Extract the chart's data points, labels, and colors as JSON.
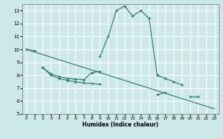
{
  "xlabel": "Humidex (Indice chaleur)",
  "background_color": "#cce8e8",
  "grid_color": "#ffffff",
  "line_color": "#2e7d6e",
  "xlim": [
    -0.5,
    23.5
  ],
  "ylim": [
    5,
    13.5
  ],
  "xticks": [
    0,
    1,
    2,
    3,
    4,
    5,
    6,
    7,
    8,
    9,
    10,
    11,
    12,
    13,
    14,
    15,
    16,
    17,
    18,
    19,
    20,
    21,
    22,
    23
  ],
  "yticks": [
    5,
    6,
    7,
    8,
    9,
    10,
    11,
    12,
    13
  ],
  "lines": [
    {
      "segments": [
        {
          "x": [
            0,
            1
          ],
          "y": [
            10.0,
            9.9
          ]
        },
        {
          "x": [
            9,
            10,
            11,
            12,
            13,
            14,
            15,
            16
          ],
          "y": [
            9.45,
            11.0,
            13.0,
            13.35,
            12.6,
            13.0,
            12.4,
            8.0
          ]
        }
      ]
    },
    {
      "segments": [
        {
          "x": [
            2,
            3,
            4,
            5,
            6,
            7,
            8,
            9
          ],
          "y": [
            8.6,
            8.1,
            7.9,
            7.75,
            7.7,
            7.65,
            8.2,
            8.3
          ]
        },
        {
          "x": [
            16,
            17,
            18,
            19
          ],
          "y": [
            8.0,
            7.75,
            7.5,
            7.25
          ]
        }
      ]
    },
    {
      "segments": [
        {
          "x": [
            2,
            3,
            4,
            5,
            6,
            7,
            8,
            9
          ],
          "y": [
            8.6,
            8.0,
            7.75,
            7.6,
            7.5,
            7.4,
            7.35,
            7.3
          ]
        },
        {
          "x": [
            16,
            17
          ],
          "y": [
            6.5,
            6.65
          ]
        },
        {
          "x": [
            20,
            21
          ],
          "y": [
            6.35,
            6.35
          ]
        }
      ]
    },
    {
      "segments": [
        {
          "x": [
            0,
            23
          ],
          "y": [
            10.0,
            5.4
          ]
        }
      ]
    }
  ]
}
